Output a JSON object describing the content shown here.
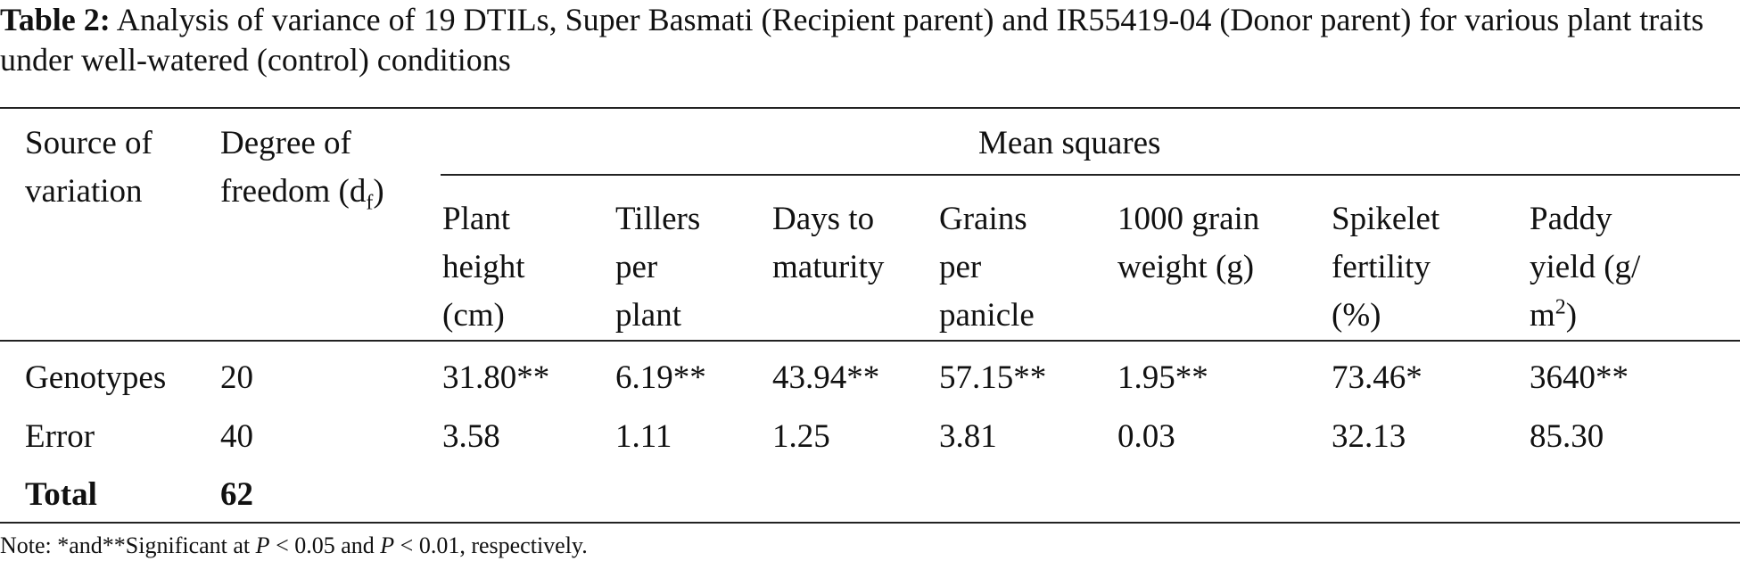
{
  "caption": {
    "label": "Table 2:",
    "text": "Analysis of variance of 19 DTILs, Super Basmati (Recipient parent) and IR55419-04 (Donor parent) for various plant traits under well-watered (control) conditions"
  },
  "table": {
    "col_source": [
      "Source of",
      "variation"
    ],
    "col_df": [
      "Degree of",
      "freedom (d"
    ],
    "col_df_sub": "f",
    "col_df_close": ")",
    "mean_squares_label": "Mean squares",
    "traits": [
      {
        "lines": [
          "Plant",
          "height",
          "(cm)"
        ]
      },
      {
        "lines": [
          "Tillers",
          "per",
          "plant"
        ]
      },
      {
        "lines": [
          "Days to",
          "maturity"
        ]
      },
      {
        "lines": [
          "Grains",
          "per",
          "panicle"
        ]
      },
      {
        "lines": [
          "1000 grain",
          "weight (g)"
        ]
      },
      {
        "lines": [
          "Spikelet",
          "fertility",
          "(%)"
        ]
      },
      {
        "lines": [
          "Paddy",
          "yield (g/",
          "m"
        ],
        "sup": "2",
        "tail": ")"
      }
    ],
    "rows": [
      {
        "source": "Genotypes",
        "df": "20",
        "values": [
          "31.80**",
          "6.19**",
          "43.94**",
          "57.15**",
          "1.95**",
          "73.46*",
          "3640**"
        ]
      },
      {
        "source": "Error",
        "df": "40",
        "values": [
          "3.58",
          "1.11",
          "1.25",
          "3.81",
          "0.03",
          "32.13",
          "85.30"
        ]
      },
      {
        "source": "Total",
        "df": "62",
        "values": []
      }
    ]
  },
  "note": {
    "prefix": "Note: *and**Significant at ",
    "p1": "P",
    "mid": " < 0.05 and ",
    "p2": "P",
    "suffix": " < 0.01, respectively."
  }
}
